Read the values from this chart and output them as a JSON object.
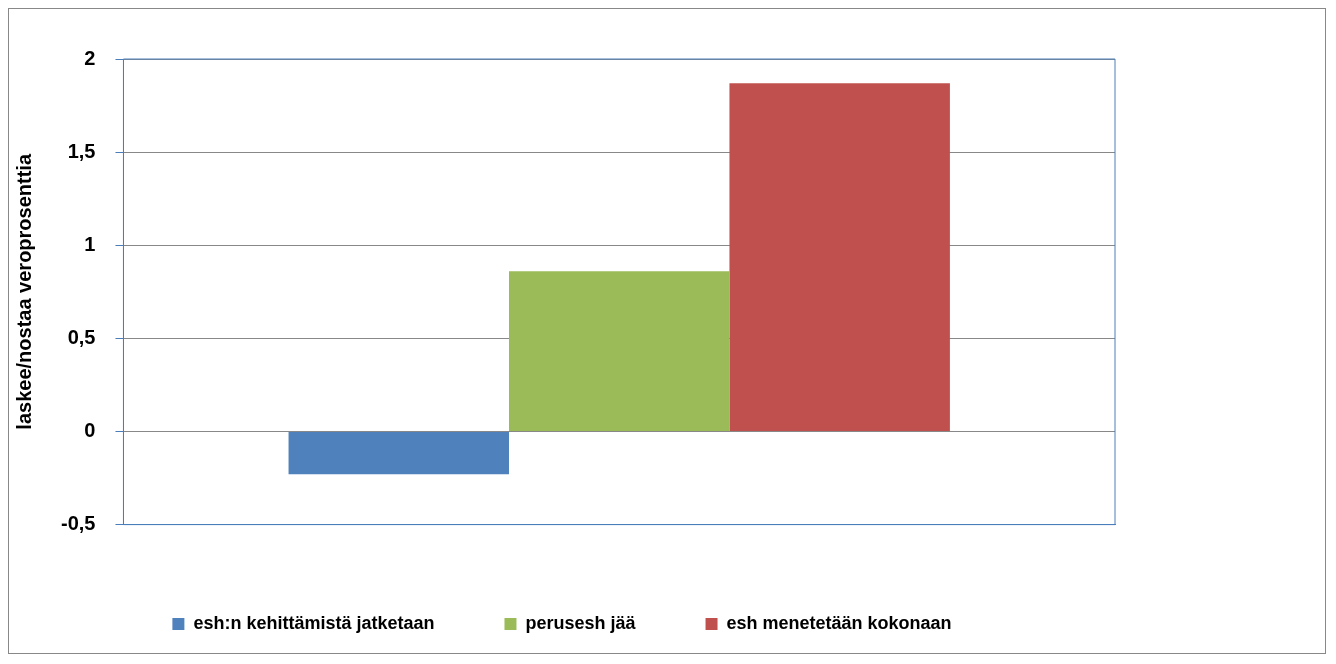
{
  "chart_data": {
    "type": "bar",
    "ylabel": "laskee/nostaa veroprosenttia",
    "categories": [
      null
    ],
    "series": [
      {
        "name": "esh:n kehittämistä jatketaan",
        "color": "#4f81bd",
        "values": [
          -0.23
        ]
      },
      {
        "name": "perusesh jää",
        "color": "#9bbb59",
        "values": [
          0.86
        ]
      },
      {
        "name": "esh menetetään kokonaan",
        "color": "#c0504d",
        "values": [
          1.87
        ]
      }
    ],
    "ylim": [
      -0.5,
      2
    ],
    "yticks": [
      {
        "value": -0.5,
        "label": "-0,5"
      },
      0,
      {
        "value": 0.5,
        "label": "0,5"
      },
      1,
      {
        "value": 1.5,
        "label": "1,5"
      },
      2
    ],
    "grid": "y",
    "legend": "bottom"
  }
}
